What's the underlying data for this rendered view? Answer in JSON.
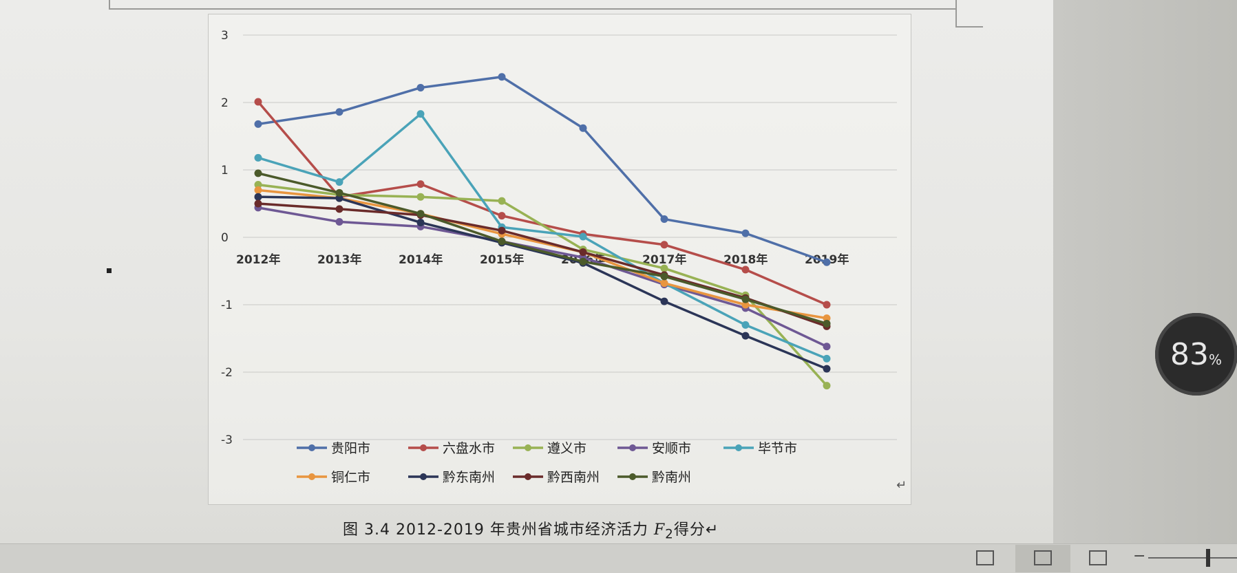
{
  "caption": {
    "prefix": "图 3.4 2012-2019 年贵州省城市经济活力 ",
    "f_letter": "F",
    "f_sub": "2",
    "suffix": "得分"
  },
  "zoom_badge": {
    "value": "83",
    "unit": "%"
  },
  "chart_data": {
    "type": "line",
    "categories": [
      "2012年",
      "2013年",
      "2014年",
      "2015年",
      "2016年",
      "2017年",
      "2018年",
      "2019年"
    ],
    "ylim": [
      -3,
      3
    ],
    "yticks": [
      3,
      2,
      1,
      0,
      -1,
      -2,
      -3
    ],
    "grid": true,
    "legend_position": "bottom",
    "series": [
      {
        "name": "贵阳市",
        "color": "#4f6fa8",
        "values": [
          1.68,
          1.86,
          2.22,
          2.38,
          1.62,
          0.27,
          0.06,
          -0.37
        ]
      },
      {
        "name": "六盘水市",
        "color": "#b54d4a",
        "values": [
          2.01,
          0.6,
          0.79,
          0.32,
          0.05,
          -0.11,
          -0.48,
          -1.0
        ]
      },
      {
        "name": "遵义市",
        "color": "#98b254",
        "values": [
          0.78,
          0.63,
          0.6,
          0.54,
          -0.18,
          -0.46,
          -0.86,
          -2.2
        ]
      },
      {
        "name": "安顺市",
        "color": "#6e5894",
        "values": [
          0.44,
          0.23,
          0.16,
          -0.06,
          -0.3,
          -0.7,
          -1.05,
          -1.62
        ]
      },
      {
        "name": "毕节市",
        "color": "#4aa3b8",
        "values": [
          1.18,
          0.82,
          1.83,
          0.15,
          0.01,
          -0.68,
          -1.3,
          -1.8
        ]
      },
      {
        "name": "铜仁市",
        "color": "#e8953f",
        "values": [
          0.7,
          0.58,
          0.35,
          0.05,
          -0.22,
          -0.68,
          -1.0,
          -1.2
        ]
      },
      {
        "name": "黔东南州",
        "color": "#2b3557",
        "values": [
          0.6,
          0.58,
          0.22,
          -0.08,
          -0.38,
          -0.95,
          -1.46,
          -1.95
        ]
      },
      {
        "name": "黔西南州",
        "color": "#6a2b2a",
        "values": [
          0.5,
          0.42,
          0.33,
          0.1,
          -0.22,
          -0.56,
          -0.9,
          -1.32
        ]
      },
      {
        "name": "黔南州",
        "color": "#4b5a2a",
        "values": [
          0.95,
          0.66,
          0.35,
          -0.06,
          -0.36,
          -0.58,
          -0.92,
          -1.28
        ]
      }
    ]
  }
}
